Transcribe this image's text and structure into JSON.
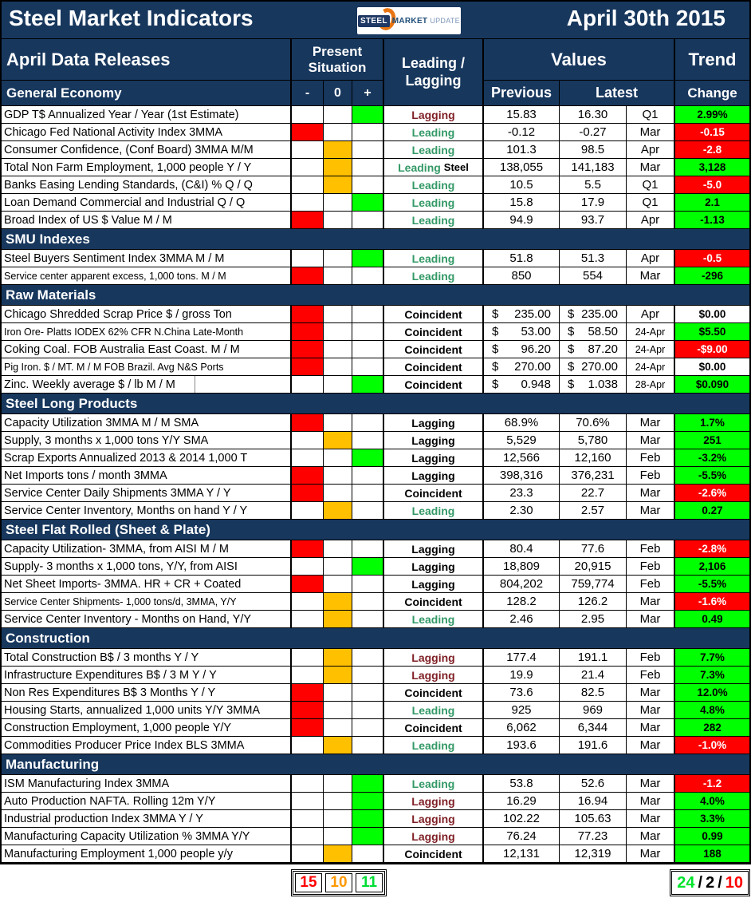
{
  "colors": {
    "navy": "#17375D",
    "red": "#FF0000",
    "green": "#00FF00",
    "amber": "#FFC000",
    "lagging_maroon": "#7F1F25",
    "leading_green": "#339966",
    "black": "#000000",
    "white_text": "#FFFFFF"
  },
  "header": {
    "title": "Steel Market Indicators",
    "date": "April 30th 2015",
    "logo_steel": "STEEL",
    "logo_market": "MARKET",
    "logo_update": "UPDATE"
  },
  "columns": {
    "releases": "April Data Releases",
    "present_situation": "Present Situation",
    "leading_lagging_line1": "Leading /",
    "leading_lagging_line2": "Lagging",
    "values": "Values",
    "trend": "Trend",
    "minus": "-",
    "zero": "0",
    "plus": "+",
    "previous": "Previous",
    "latest": "Latest",
    "change": "Change"
  },
  "sections": [
    {
      "name": "General Economy",
      "header_in_band": true,
      "rows": [
        {
          "label": "GDP T$ Annualized Year / Year (1st Estimate)",
          "sit": "plus",
          "cls": "Lagging",
          "cls_color": "maroon",
          "prev": "15.83",
          "latest": "16.30",
          "dollar": false,
          "month": "Q1",
          "change": "2.99%",
          "change_bg": "green"
        },
        {
          "label": "Chicago Fed National Activity Index 3MMA",
          "sit": "minus",
          "cls": "Leading",
          "cls_color": "green",
          "prev": "-0.12",
          "latest": "-0.27",
          "dollar": false,
          "month": "Mar",
          "change": "-0.15",
          "change_bg": "red"
        },
        {
          "label": "Consumer Confidence, (Conf Board) 3MMA M/M",
          "sit": "zero",
          "cls": "Leading",
          "cls_color": "green",
          "prev": "101.3",
          "latest": "98.5",
          "dollar": false,
          "month": "Apr",
          "change": "-2.8",
          "change_bg": "red"
        },
        {
          "label": "Total Non Farm Employment, 1,000 people Y / Y",
          "sit": "zero",
          "cls": "Leading",
          "cls_color": "green",
          "cls_suffix": "Steel",
          "prev": "138,055",
          "latest": "141,183",
          "dollar": false,
          "month": "Mar",
          "change": "3,128",
          "change_bg": "green"
        },
        {
          "label": "Banks Easing Lending Standards, (C&I) % Q / Q",
          "sit": "zero",
          "cls": "Leading",
          "cls_color": "green",
          "prev": "10.5",
          "latest": "5.5",
          "dollar": false,
          "month": "Q1",
          "change": "-5.0",
          "change_bg": "red"
        },
        {
          "label": "Loan Demand Commercial and Industrial Q / Q",
          "sit": "plus",
          "cls": "Leading",
          "cls_color": "green",
          "prev": "15.8",
          "latest": "17.9",
          "dollar": false,
          "month": "Q1",
          "change": "2.1",
          "change_bg": "green"
        },
        {
          "label": "Broad Index of US $ Value M / M",
          "sit": "minus",
          "cls": "Leading",
          "cls_color": "green",
          "prev": "94.9",
          "latest": "93.7",
          "dollar": false,
          "month": "Apr",
          "change": "-1.13",
          "change_bg": "green"
        }
      ]
    },
    {
      "name": "SMU Indexes",
      "rows": [
        {
          "label": "Steel Buyers Sentiment Index 3MMA M / M",
          "sit": "plus",
          "cls": "Leading",
          "cls_color": "green",
          "prev": "51.8",
          "latest": "51.3",
          "dollar": false,
          "month": "Apr",
          "change": "-0.5",
          "change_bg": "red"
        },
        {
          "label": "Service center apparent excess, 1,000 tons. M / M",
          "sit": "minus",
          "cls": "Leading",
          "cls_color": "green",
          "prev": "850",
          "latest": "554",
          "dollar": false,
          "month": "Mar",
          "change": "-296",
          "change_bg": "green"
        }
      ]
    },
    {
      "name": "Raw Materials",
      "rows": [
        {
          "label": "Chicago Shredded Scrap Price $ / gross Ton",
          "sit": "minus",
          "cls": "Coincident",
          "cls_color": "black",
          "prev": "235.00",
          "latest": "235.00",
          "dollar": true,
          "month": "Apr",
          "change": "$0.00",
          "change_bg": "white"
        },
        {
          "label": "Iron Ore- Platts IODEX 62% CFR N.China Late-Month",
          "sit": "minus",
          "cls": "Coincident",
          "cls_color": "black",
          "prev": "53.00",
          "latest": "58.50",
          "dollar": true,
          "month": "24-Apr",
          "change": "$5.50",
          "change_bg": "green"
        },
        {
          "label": "Coking Coal. FOB Australia East Coast. M / M",
          "sit": "minus",
          "cls": "Coincident",
          "cls_color": "black",
          "prev": "96.20",
          "latest": "87.20",
          "dollar": true,
          "month": "24-Apr",
          "change": "-$9.00",
          "change_bg": "red"
        },
        {
          "label": "Pig Iron. $ / MT. M / M FOB Brazil. Avg N&S Ports",
          "sit": "minus",
          "cls": "Coincident",
          "cls_color": "black",
          "prev": "270.00",
          "latest": "270.00",
          "dollar": true,
          "month": "24-Apr",
          "change": "$0.00",
          "change_bg": "white"
        },
        {
          "label": "Zinc. Weekly average $ / lb M / M",
          "sit": "plus",
          "cls": "Coincident",
          "cls_color": "black",
          "prev": "0.948",
          "latest": "1.038",
          "dollar": true,
          "month": "28-Apr",
          "change": "$0.090",
          "change_bg": "green",
          "label_split": true
        }
      ]
    },
    {
      "name": "Steel Long Products",
      "rows": [
        {
          "label": "Capacity Utilization 3MMA  M / M SMA",
          "sit": "minus",
          "cls": "Lagging",
          "cls_color": "black",
          "prev": "68.9%",
          "latest": "70.6%",
          "dollar": false,
          "month": "Mar",
          "change": "1.7%",
          "change_bg": "green"
        },
        {
          "label": "Supply, 3 months x 1,000 tons Y/Y SMA",
          "sit": "zero",
          "cls": "Lagging",
          "cls_color": "black",
          "prev": "5,529",
          "latest": "5,780",
          "dollar": false,
          "month": "Mar",
          "change": "251",
          "change_bg": "green"
        },
        {
          "label": "Scrap Exports Annualized 2013 & 2014 1,000 T",
          "sit": "plus",
          "cls": "Lagging",
          "cls_color": "black",
          "prev": "12,566",
          "latest": "12,160",
          "dollar": false,
          "month": "Feb",
          "change": "-3.2%",
          "change_bg": "green"
        },
        {
          "label": "Net Imports tons / month 3MMA",
          "sit": "minus",
          "cls": "Lagging",
          "cls_color": "black",
          "prev": "398,316",
          "latest": "376,231",
          "dollar": false,
          "month": "Feb",
          "change": "-5.5%",
          "change_bg": "green"
        },
        {
          "label": "Service Center Daily Shipments 3MMA Y / Y",
          "sit": "minus",
          "cls": "Coincident",
          "cls_color": "black",
          "prev": "23.3",
          "latest": "22.7",
          "dollar": false,
          "month": "Mar",
          "change": "-2.6%",
          "change_bg": "red"
        },
        {
          "label": "Service Center Inventory, Months on hand Y / Y",
          "sit": "zero",
          "cls": "Leading",
          "cls_color": "green",
          "prev": "2.30",
          "latest": "2.57",
          "dollar": false,
          "month": "Mar",
          "change": "0.27",
          "change_bg": "green"
        }
      ]
    },
    {
      "name": "Steel Flat Rolled (Sheet & Plate)",
      "rows": [
        {
          "label": "Capacity Utilization- 3MMA, from AISI M / M",
          "sit": "minus",
          "cls": "Lagging",
          "cls_color": "black",
          "prev": "80.4",
          "latest": "77.6",
          "dollar": false,
          "month": "Feb",
          "change": "-2.8%",
          "change_bg": "red"
        },
        {
          "label": "Supply- 3 months x 1,000 tons, Y/Y, from AISI",
          "sit": "plus",
          "cls": "Lagging",
          "cls_color": "black",
          "prev": "18,809",
          "latest": "20,915",
          "dollar": false,
          "month": "Feb",
          "change": "2,106",
          "change_bg": "green"
        },
        {
          "label": "Net Sheet Imports- 3MMA. HR + CR + Coated",
          "sit": "minus",
          "cls": "Lagging",
          "cls_color": "black",
          "prev": "804,202",
          "latest": "759,774",
          "dollar": false,
          "month": "Feb",
          "change": "-5.5%",
          "change_bg": "green"
        },
        {
          "label": "Service Center Shipments- 1,000 tons/d, 3MMA, Y/Y",
          "sit": "zero",
          "cls": "Coincident",
          "cls_color": "black",
          "prev": "128.2",
          "latest": "126.2",
          "dollar": false,
          "month": "Mar",
          "change": "-1.6%",
          "change_bg": "red"
        },
        {
          "label": "Service Center Inventory - Months on Hand, Y/Y",
          "sit": "zero",
          "cls": "Leading",
          "cls_color": "green",
          "prev": "2.46",
          "latest": "2.95",
          "dollar": false,
          "month": "Mar",
          "change": "0.49",
          "change_bg": "green"
        }
      ]
    },
    {
      "name": "Construction",
      "rows": [
        {
          "label": "Total Construction B$ /  3 months Y / Y",
          "sit": "zero",
          "cls": "Lagging",
          "cls_color": "maroon",
          "prev": "177.4",
          "latest": "191.1",
          "dollar": false,
          "month": "Feb",
          "change": "7.7%",
          "change_bg": "green"
        },
        {
          "label": "Infrastructure Expenditures B$ / 3 M   Y / Y",
          "sit": "zero",
          "cls": "Lagging",
          "cls_color": "maroon",
          "prev": "19.9",
          "latest": "21.4",
          "dollar": false,
          "month": "Feb",
          "change": "7.3%",
          "change_bg": "green"
        },
        {
          "label": "Non Res Expenditures B$  3 Months   Y / Y",
          "sit": "minus",
          "cls": "Coincident",
          "cls_color": "black",
          "prev": "73.6",
          "latest": "82.5",
          "dollar": false,
          "month": "Mar",
          "change": "12.0%",
          "change_bg": "green"
        },
        {
          "label": "Housing Starts, annualized 1,000 units Y/Y 3MMA",
          "sit": "minus",
          "cls": "Leading",
          "cls_color": "green",
          "prev": "925",
          "latest": "969",
          "dollar": false,
          "month": "Mar",
          "change": "4.8%",
          "change_bg": "green"
        },
        {
          "label": "Construction Employment, 1,000 people Y/Y",
          "sit": "minus",
          "cls": "Coincident",
          "cls_color": "black",
          "prev": "6,062",
          "latest": "6,344",
          "dollar": false,
          "month": "Mar",
          "change": "282",
          "change_bg": "green"
        },
        {
          "label": "Commodities Producer Price Index BLS 3MMA",
          "sit": "zero",
          "cls": "Leading",
          "cls_color": "green",
          "prev": "193.6",
          "latest": "191.6",
          "dollar": false,
          "month": "Mar",
          "change": "-1.0%",
          "change_bg": "red"
        }
      ]
    },
    {
      "name": "Manufacturing",
      "rows": [
        {
          "label": "ISM Manufacturing Index 3MMA",
          "sit": "plus",
          "cls": "Leading",
          "cls_color": "green",
          "prev": "53.8",
          "latest": "52.6",
          "dollar": false,
          "month": "Mar",
          "change": "-1.2",
          "change_bg": "red"
        },
        {
          "label": "Auto Production NAFTA. Rolling 12m Y/Y",
          "sit": "plus",
          "cls": "Lagging",
          "cls_color": "maroon",
          "prev": "16.29",
          "latest": "16.94",
          "dollar": false,
          "month": "Mar",
          "change": "4.0%",
          "change_bg": "green"
        },
        {
          "label": "Industrial production Index 3MMA Y / Y",
          "sit": "plus",
          "cls": "Lagging",
          "cls_color": "maroon",
          "prev": "102.22",
          "latest": "105.63",
          "dollar": false,
          "month": "Mar",
          "change": "3.3%",
          "change_bg": "green"
        },
        {
          "label": "Manufacturing Capacity Utilization % 3MMA Y/Y",
          "sit": "plus",
          "cls": "Lagging",
          "cls_color": "maroon",
          "prev": "76.24",
          "latest": "77.23",
          "dollar": false,
          "month": "Mar",
          "change": "0.99",
          "change_bg": "green"
        },
        {
          "label": "Manufacturing Employment 1,000 people y/y",
          "sit": "zero",
          "cls": "Coincident",
          "cls_color": "black",
          "prev": "12,131",
          "latest": "12,319",
          "dollar": false,
          "month": "Mar",
          "change": "188",
          "change_bg": "green"
        }
      ]
    }
  ],
  "footer": {
    "left": [
      {
        "text": "15",
        "color": "#FF0000"
      },
      {
        "text": "10",
        "color": "#FF9900"
      },
      {
        "text": "11",
        "color": "#00DD33"
      }
    ],
    "right": [
      {
        "text": "24",
        "color": "#00E42C"
      },
      {
        "text": "/",
        "color": "#000000"
      },
      {
        "text": "2",
        "color": "#000000"
      },
      {
        "text": "/",
        "color": "#000000"
      },
      {
        "text": "10",
        "color": "#FF0000"
      }
    ]
  }
}
